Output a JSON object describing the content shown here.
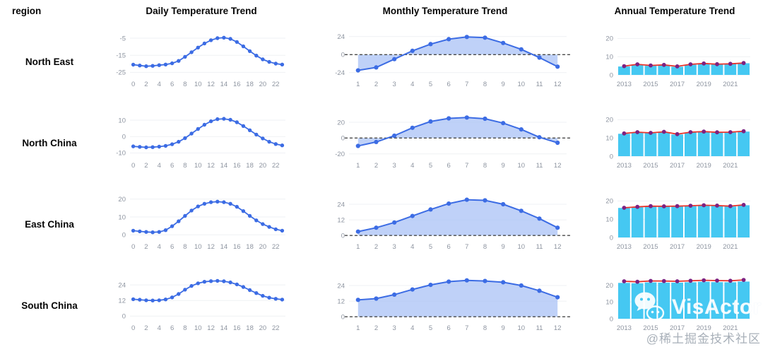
{
  "header": {
    "region_label": "region",
    "daily_title": "Daily Temperature Trend",
    "monthly_title": "Monthly Temperature Trend",
    "annual_title": "Annual Temperature Trend"
  },
  "colors": {
    "line_blue": "#3c6ce4",
    "area_fill": "#a9c2f5",
    "bar_cyan": "#45c8f2",
    "line_red": "#e8342c",
    "dot_purple": "#7d2182",
    "axis_text": "#8d94a0",
    "grid": "#eff1f4",
    "zero_dash": "#4a4a4a"
  },
  "watermark": {
    "brand": "VisActor",
    "icon": "wechat-icon",
    "caption": "@稀土掘金技术社区"
  },
  "chart_data": [
    {
      "region": "North East",
      "daily": {
        "type": "line",
        "xtick_labels": [
          "0",
          "2",
          "4",
          "6",
          "8",
          "10",
          "12",
          "14",
          "16",
          "18",
          "20",
          "22"
        ],
        "values": [
          -20.5,
          -21,
          -21.4,
          -21.2,
          -20.8,
          -20.4,
          -19.7,
          -18.3,
          -15.9,
          -13.2,
          -10.5,
          -8.1,
          -6.2,
          -5,
          -4.7,
          -5.4,
          -7.2,
          -9.8,
          -12.6,
          -15.2,
          -17.4,
          -18.9,
          -19.9,
          -20.4
        ],
        "yticks": [
          -5,
          -15,
          -25
        ],
        "ylim": [
          -26.5,
          -2.5
        ]
      },
      "monthly": {
        "type": "area",
        "xtick_labels": [
          "1",
          "2",
          "3",
          "4",
          "5",
          "6",
          "7",
          "8",
          "9",
          "10",
          "11",
          "12"
        ],
        "values": [
          -21,
          -17,
          -6,
          5,
          14,
          20.5,
          23.5,
          22.5,
          15.5,
          7,
          -4,
          -16
        ],
        "yticks": [
          24,
          0,
          -24
        ],
        "ylim": [
          -27,
          27.5
        ],
        "zero_line": true
      },
      "annual": {
        "type": "bar",
        "xtick_labels": [
          "2013",
          "2015",
          "2017",
          "2019",
          "2021"
        ],
        "bars": [
          4.6,
          5.6,
          5.0,
          5.3,
          4.5,
          5.6,
          6.2,
          5.8,
          6.0,
          6.4
        ],
        "line": [
          4.8,
          5.8,
          5.2,
          5.5,
          4.7,
          5.8,
          6.3,
          5.9,
          6.1,
          6.5
        ],
        "yticks": [
          20,
          10,
          0
        ],
        "ylim": [
          0,
          22.5
        ]
      }
    },
    {
      "region": "North China",
      "daily": {
        "type": "line",
        "xtick_labels": [
          "0",
          "2",
          "4",
          "6",
          "8",
          "10",
          "12",
          "14",
          "16",
          "18",
          "20",
          "22"
        ],
        "values": [
          -6,
          -6.3,
          -6.6,
          -6.5,
          -6.2,
          -5.7,
          -4.7,
          -3.2,
          -1,
          1.8,
          4.6,
          7.2,
          9.3,
          10.6,
          10.8,
          10.2,
          8.7,
          6.4,
          3.8,
          1.2,
          -1.2,
          -3.2,
          -4.6,
          -5.4
        ],
        "yticks": [
          10,
          0,
          -10
        ],
        "ylim": [
          -12,
          13
        ]
      },
      "monthly": {
        "type": "area",
        "xtick_labels": [
          "1",
          "2",
          "3",
          "4",
          "5",
          "6",
          "7",
          "8",
          "9",
          "10",
          "11",
          "12"
        ],
        "values": [
          -10,
          -5,
          3,
          13,
          21,
          25,
          26,
          24.5,
          19,
          11,
          1,
          -6
        ],
        "yticks": [
          20,
          0,
          -20
        ],
        "ylim": [
          -23,
          29
        ],
        "zero_line": true
      },
      "annual": {
        "type": "bar",
        "xtick_labels": [
          "2013",
          "2015",
          "2017",
          "2019",
          "2021"
        ],
        "bars": [
          12.3,
          13.0,
          12.6,
          13.2,
          11.9,
          13.0,
          13.3,
          12.9,
          13.0,
          13.5
        ],
        "line": [
          12.5,
          13.2,
          12.8,
          13.4,
          12.1,
          13.2,
          13.5,
          13.1,
          13.2,
          13.7
        ],
        "yticks": [
          20,
          10,
          0
        ],
        "ylim": [
          0,
          22.5
        ]
      }
    },
    {
      "region": "East China",
      "daily": {
        "type": "line",
        "xtick_labels": [
          "0",
          "2",
          "4",
          "6",
          "8",
          "10",
          "12",
          "14",
          "16",
          "18",
          "20",
          "22"
        ],
        "values": [
          2.3,
          1.9,
          1.6,
          1.4,
          1.6,
          2.6,
          4.8,
          7.6,
          10.6,
          13.6,
          15.9,
          17.4,
          18.3,
          18.6,
          18.3,
          17.4,
          15.7,
          13.3,
          10.6,
          8.1,
          6,
          4.4,
          3.1,
          2.3
        ],
        "yticks": [
          20,
          10,
          0
        ],
        "ylim": [
          -1.5,
          21.5
        ]
      },
      "monthly": {
        "type": "area",
        "xtick_labels": [
          "1",
          "2",
          "3",
          "4",
          "5",
          "6",
          "7",
          "8",
          "9",
          "10",
          "11",
          "12"
        ],
        "values": [
          3,
          6,
          10,
          15,
          20,
          24.5,
          27.5,
          27,
          24,
          19,
          13,
          6
        ],
        "yticks": [
          24,
          12,
          0
        ],
        "ylim": [
          -1.5,
          30
        ],
        "zero_line": true
      },
      "annual": {
        "type": "bar",
        "xtick_labels": [
          "2013",
          "2015",
          "2017",
          "2019",
          "2021"
        ],
        "bars": [
          16.2,
          16.6,
          17.0,
          16.9,
          17.0,
          17.2,
          17.5,
          17.3,
          17.0,
          17.7
        ],
        "line": [
          16.3,
          16.8,
          17.2,
          17.1,
          17.2,
          17.4,
          17.7,
          17.5,
          17.2,
          17.9
        ],
        "yticks": [
          20,
          10,
          0
        ],
        "ylim": [
          0,
          22.5
        ]
      }
    },
    {
      "region": "South China",
      "daily": {
        "type": "line",
        "xtick_labels": [
          "0",
          "2",
          "4",
          "6",
          "8",
          "10",
          "12",
          "14",
          "16",
          "18",
          "20",
          "22"
        ],
        "values": [
          13,
          12.6,
          12.2,
          12,
          12.2,
          12.8,
          14.4,
          17,
          20.3,
          23.2,
          25.2,
          26.4,
          26.9,
          27.1,
          26.8,
          25.9,
          24.4,
          22.4,
          20,
          17.7,
          15.6,
          14.2,
          13.3,
          12.7
        ],
        "yticks": [
          24,
          12,
          0
        ],
        "ylim": [
          -2,
          29.5
        ]
      },
      "monthly": {
        "type": "area",
        "xtick_labels": [
          "1",
          "2",
          "3",
          "4",
          "5",
          "6",
          "7",
          "8",
          "9",
          "10",
          "11",
          "12"
        ],
        "values": [
          13,
          14,
          17,
          21,
          24.5,
          27,
          28,
          27.5,
          26.5,
          24,
          20,
          15
        ],
        "yticks": [
          24,
          12,
          0
        ],
        "ylim": [
          -1.5,
          30
        ],
        "zero_line": true
      },
      "annual": {
        "type": "bar",
        "xtick_labels": [
          "2013",
          "2015",
          "2017",
          "2019",
          "2021"
        ],
        "bars": [
          21.4,
          21.2,
          21.7,
          21.6,
          21.6,
          21.8,
          22.1,
          21.9,
          21.8,
          22.2
        ],
        "line": [
          22.4,
          22.1,
          22.6,
          22.5,
          22.4,
          22.7,
          23.0,
          22.8,
          22.7,
          23.2
        ],
        "yticks": [
          20,
          10,
          0
        ],
        "ylim": [
          0,
          24.5
        ]
      }
    }
  ]
}
